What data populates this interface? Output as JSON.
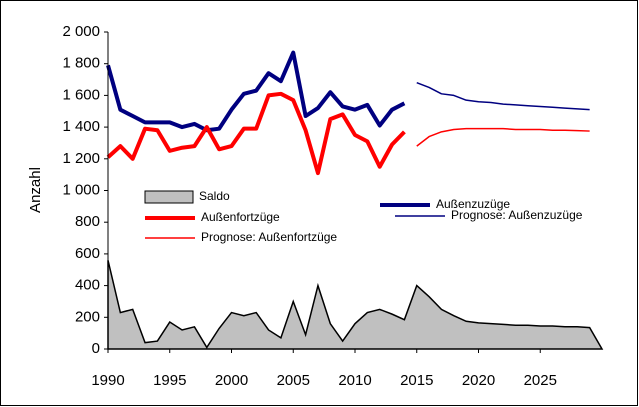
{
  "chart_data": {
    "type": "line",
    "y_label": "Anzahl",
    "xlim": [
      1990,
      2030
    ],
    "xticks": [
      1990,
      1995,
      2000,
      2005,
      2010,
      2015,
      2020,
      2025
    ],
    "ylim": [
      0,
      2000
    ],
    "yticks": [
      0,
      200,
      400,
      600,
      800,
      {
        "value": 1000,
        "label": "1 000"
      },
      {
        "value": 1200,
        "label": "1 200"
      },
      {
        "value": 1400,
        "label": "1 400"
      },
      {
        "value": 1600,
        "label": "1 600"
      },
      {
        "value": 1800,
        "label": "1 800"
      },
      {
        "value": 2000,
        "label": "2 000"
      }
    ],
    "grid": false,
    "series": [
      {
        "name": "Saldo",
        "style": "area",
        "color": "#c0c0c0",
        "x": [
          1990,
          1991,
          1992,
          1993,
          1994,
          1995,
          1996,
          1997,
          1998,
          1999,
          2000,
          2001,
          2002,
          2003,
          2004,
          2005,
          2006,
          2007,
          2008,
          2009,
          2010,
          2011,
          2012,
          2013,
          2014,
          2015,
          2016,
          2017,
          2018,
          2019,
          2020,
          2021,
          2022,
          2023,
          2024,
          2025,
          2026,
          2027,
          2028,
          2029,
          2030
        ],
        "values": [
          560,
          230,
          250,
          40,
          50,
          170,
          120,
          140,
          10,
          130,
          230,
          210,
          230,
          120,
          70,
          300,
          90,
          400,
          160,
          50,
          160,
          230,
          250,
          220,
          185,
          400,
          330,
          250,
          210,
          175,
          165,
          160,
          155,
          150,
          150,
          145,
          145,
          140,
          140,
          135,
          0
        ]
      },
      {
        "name": "Außenzuzüge",
        "style": "line",
        "line_width": 4,
        "color": "#000080",
        "x": [
          1990,
          1991,
          1992,
          1993,
          1994,
          1995,
          1996,
          1997,
          1998,
          1999,
          2000,
          2001,
          2002,
          2003,
          2004,
          2005,
          2006,
          2007,
          2008,
          2009,
          2010,
          2011,
          2012,
          2013,
          2014
        ],
        "values": [
          1790,
          1510,
          1470,
          1430,
          1430,
          1430,
          1400,
          1420,
          1380,
          1390,
          1510,
          1610,
          1630,
          1740,
          1690,
          1870,
          1470,
          1520,
          1620,
          1530,
          1510,
          1540,
          1410,
          1510,
          1550
        ]
      },
      {
        "name": "Außenfortzüge",
        "style": "line",
        "line_width": 4,
        "color": "#ff0000",
        "x": [
          1990,
          1991,
          1992,
          1993,
          1994,
          1995,
          1996,
          1997,
          1998,
          1999,
          2000,
          2001,
          2002,
          2003,
          2004,
          2005,
          2006,
          2007,
          2008,
          2009,
          2010,
          2011,
          2012,
          2013,
          2014
        ],
        "values": [
          1210,
          1280,
          1200,
          1390,
          1380,
          1250,
          1270,
          1280,
          1400,
          1260,
          1280,
          1390,
          1390,
          1600,
          1610,
          1570,
          1380,
          1110,
          1450,
          1480,
          1350,
          1310,
          1150,
          1290,
          1370
        ]
      },
      {
        "name": "Prognose: Außenzuzüge",
        "style": "line",
        "line_width": 1.5,
        "color": "#000080",
        "x": [
          2015,
          2016,
          2017,
          2018,
          2019,
          2020,
          2021,
          2022,
          2023,
          2024,
          2025,
          2026,
          2027,
          2028,
          2029
        ],
        "values": [
          1680,
          1650,
          1610,
          1600,
          1570,
          1560,
          1555,
          1545,
          1540,
          1535,
          1530,
          1525,
          1520,
          1515,
          1510
        ]
      },
      {
        "name": "Prognose: Außenfortzüge",
        "style": "line",
        "line_width": 1.5,
        "color": "#ff0000",
        "x": [
          2015,
          2016,
          2017,
          2018,
          2019,
          2020,
          2021,
          2022,
          2023,
          2024,
          2025,
          2026,
          2027,
          2028,
          2029
        ],
        "values": [
          1280,
          1340,
          1370,
          1385,
          1390,
          1390,
          1390,
          1390,
          1385,
          1385,
          1385,
          1380,
          1380,
          1378,
          1375
        ]
      }
    ]
  }
}
